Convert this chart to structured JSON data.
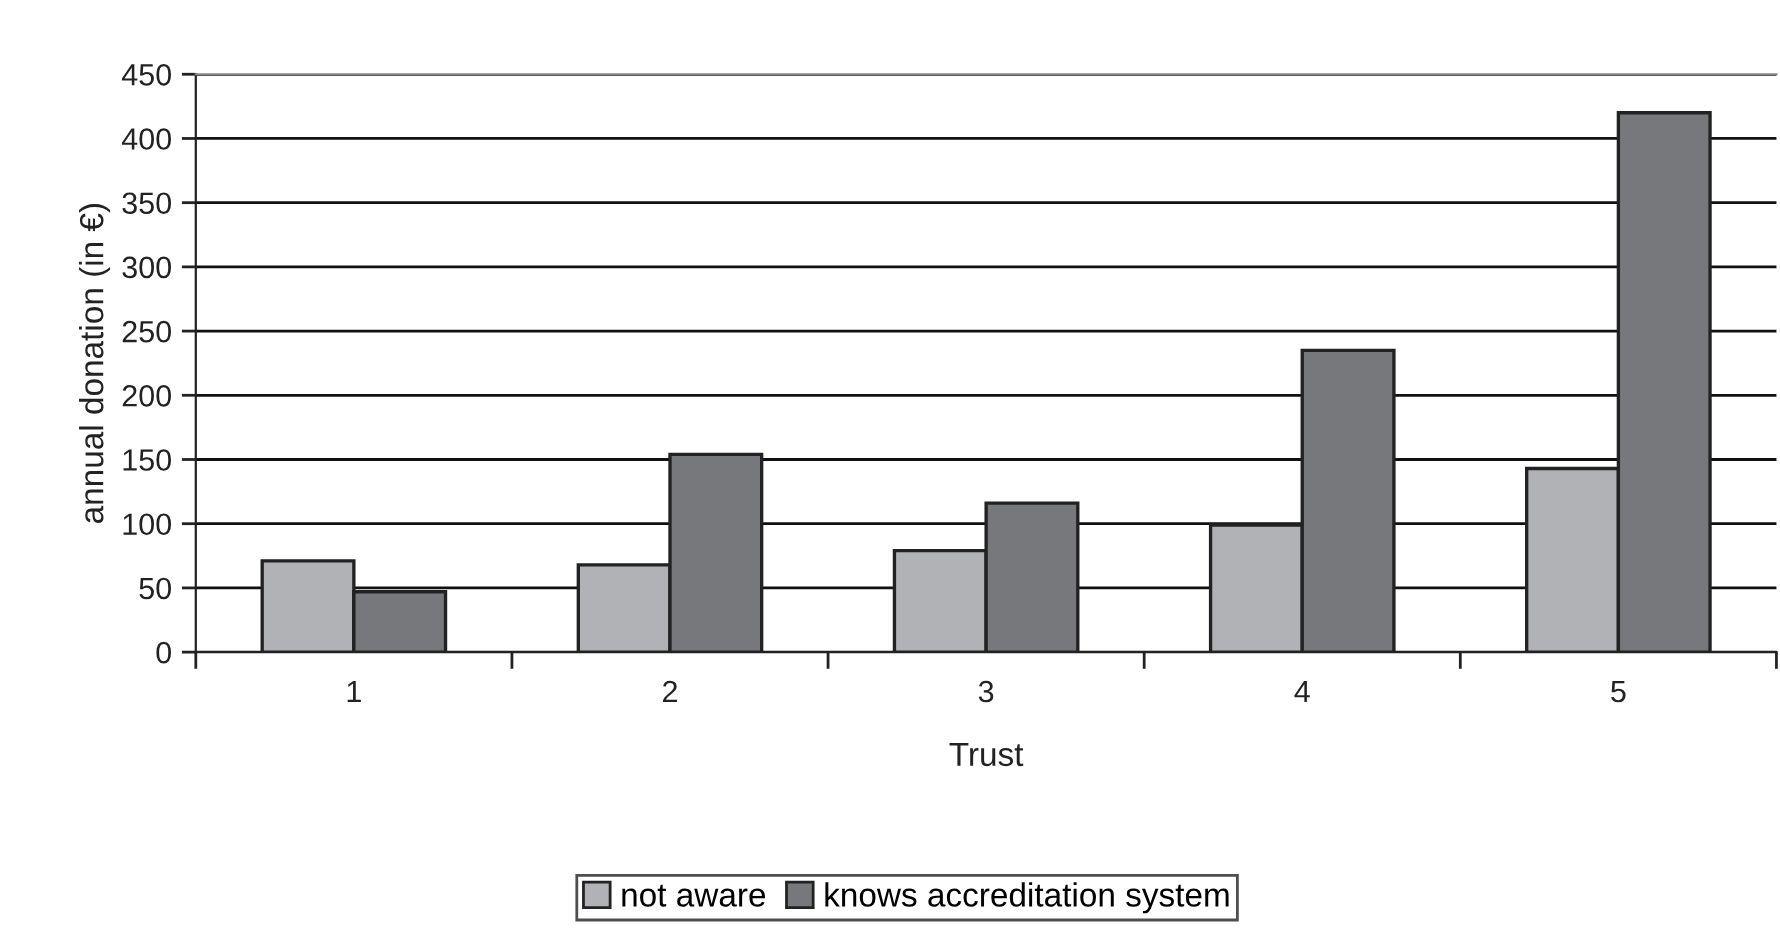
{
  "chart_data": {
    "type": "bar",
    "xlabel": "Trust",
    "ylabel": "annual donation (in €)",
    "categories": [
      "1",
      "2",
      "3",
      "4",
      "5"
    ],
    "series": [
      {
        "name": "not aware",
        "color": "#b1b2b5",
        "values": [
          71,
          68,
          79,
          99,
          143
        ]
      },
      {
        "name": "knows accreditation system",
        "color": "#77787c",
        "values": [
          47,
          154,
          116,
          235,
          420
        ]
      }
    ],
    "ylim": [
      0,
      450
    ],
    "yticks": [
      0,
      50,
      100,
      150,
      200,
      250,
      300,
      350,
      400,
      450
    ],
    "grid": "y",
    "legend": "bottom"
  }
}
